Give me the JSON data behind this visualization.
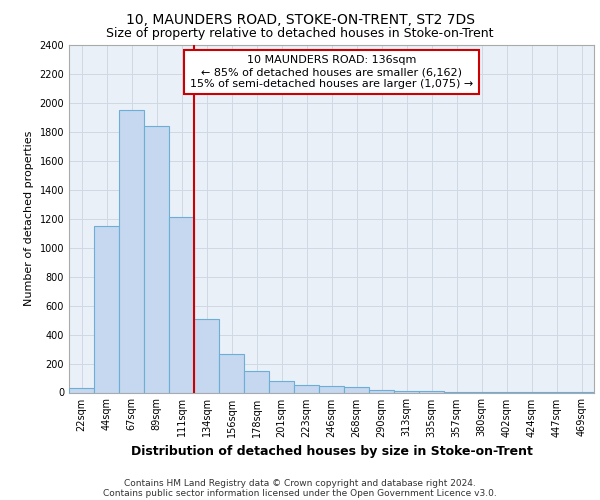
{
  "title1": "10, MAUNDERS ROAD, STOKE-ON-TRENT, ST2 7DS",
  "title2": "Size of property relative to detached houses in Stoke-on-Trent",
  "xlabel": "Distribution of detached houses by size in Stoke-on-Trent",
  "ylabel": "Number of detached properties",
  "footnote1": "Contains HM Land Registry data © Crown copyright and database right 2024.",
  "footnote2": "Contains public sector information licensed under the Open Government Licence v3.0.",
  "annotation_line1": "10 MAUNDERS ROAD: 136sqm",
  "annotation_line2": "← 85% of detached houses are smaller (6,162)",
  "annotation_line3": "15% of semi-detached houses are larger (1,075) →",
  "bar_color": "#c5d8ef",
  "bar_edge_color": "#6baed6",
  "vline_color": "#cc0000",
  "vline_x_index": 5,
  "categories": [
    "22sqm",
    "44sqm",
    "67sqm",
    "89sqm",
    "111sqm",
    "134sqm",
    "156sqm",
    "178sqm",
    "201sqm",
    "223sqm",
    "246sqm",
    "268sqm",
    "290sqm",
    "313sqm",
    "335sqm",
    "357sqm",
    "380sqm",
    "402sqm",
    "424sqm",
    "447sqm",
    "469sqm"
  ],
  "values": [
    28,
    1150,
    1950,
    1840,
    1210,
    510,
    265,
    150,
    80,
    50,
    42,
    35,
    20,
    12,
    8,
    5,
    4,
    3,
    3,
    3,
    3
  ],
  "ylim": [
    0,
    2400
  ],
  "yticks": [
    0,
    200,
    400,
    600,
    800,
    1000,
    1200,
    1400,
    1600,
    1800,
    2000,
    2200,
    2400
  ],
  "plot_bg_color": "#eaf0f8",
  "grid_color": "#d0d8e4",
  "fig_bg_color": "#ffffff",
  "title1_fontsize": 10,
  "title2_fontsize": 9,
  "xlabel_fontsize": 9,
  "ylabel_fontsize": 8,
  "tick_fontsize": 7,
  "annotation_fontsize": 8,
  "footnote_fontsize": 6.5
}
